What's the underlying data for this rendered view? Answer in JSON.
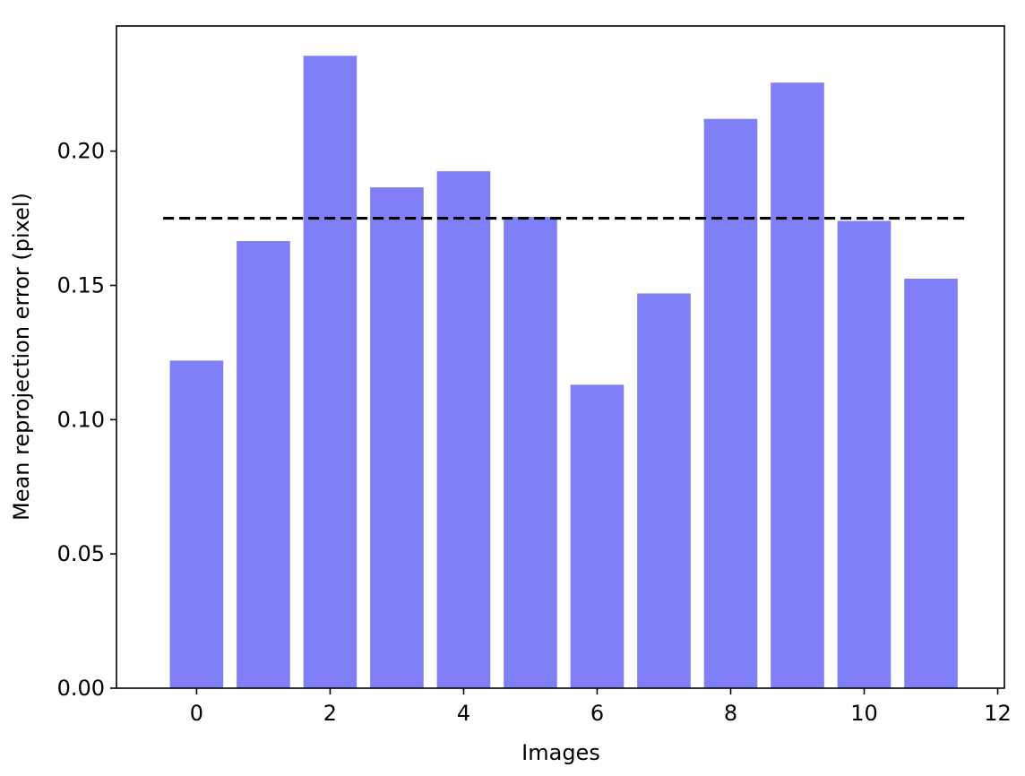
{
  "chart_data": {
    "type": "bar",
    "categories": [
      "0",
      "1",
      "2",
      "3",
      "4",
      "5",
      "6",
      "7",
      "8",
      "9",
      "10",
      "11"
    ],
    "x": [
      0,
      1,
      2,
      3,
      4,
      5,
      6,
      7,
      8,
      9,
      10,
      11
    ],
    "values": [
      0.122,
      0.1665,
      0.2355,
      0.1865,
      0.1925,
      0.1755,
      0.113,
      0.147,
      0.212,
      0.2255,
      0.174,
      0.1525
    ],
    "mean_line": {
      "value": 0.175,
      "x_range": [
        -0.5,
        11.5
      ],
      "style": "dashed",
      "color": "#000000"
    },
    "title": "",
    "xlabel": "Images",
    "ylabel": "Mean reprojection error (pixel)",
    "xlim": [
      -1.2,
      12.1
    ],
    "ylim": [
      0.0,
      0.2466
    ],
    "xticks": [
      0,
      2,
      4,
      6,
      8,
      10,
      12
    ],
    "xtick_labels": [
      "0",
      "2",
      "4",
      "6",
      "8",
      "10",
      "12"
    ],
    "yticks": [
      0.0,
      0.05,
      0.1,
      0.15,
      0.2
    ],
    "ytick_labels": [
      "0.00",
      "0.05",
      "0.10",
      "0.15",
      "0.20"
    ],
    "bar_width": 0.8,
    "bar_color": "#7f7ff7",
    "grid": false,
    "legend": "none"
  }
}
